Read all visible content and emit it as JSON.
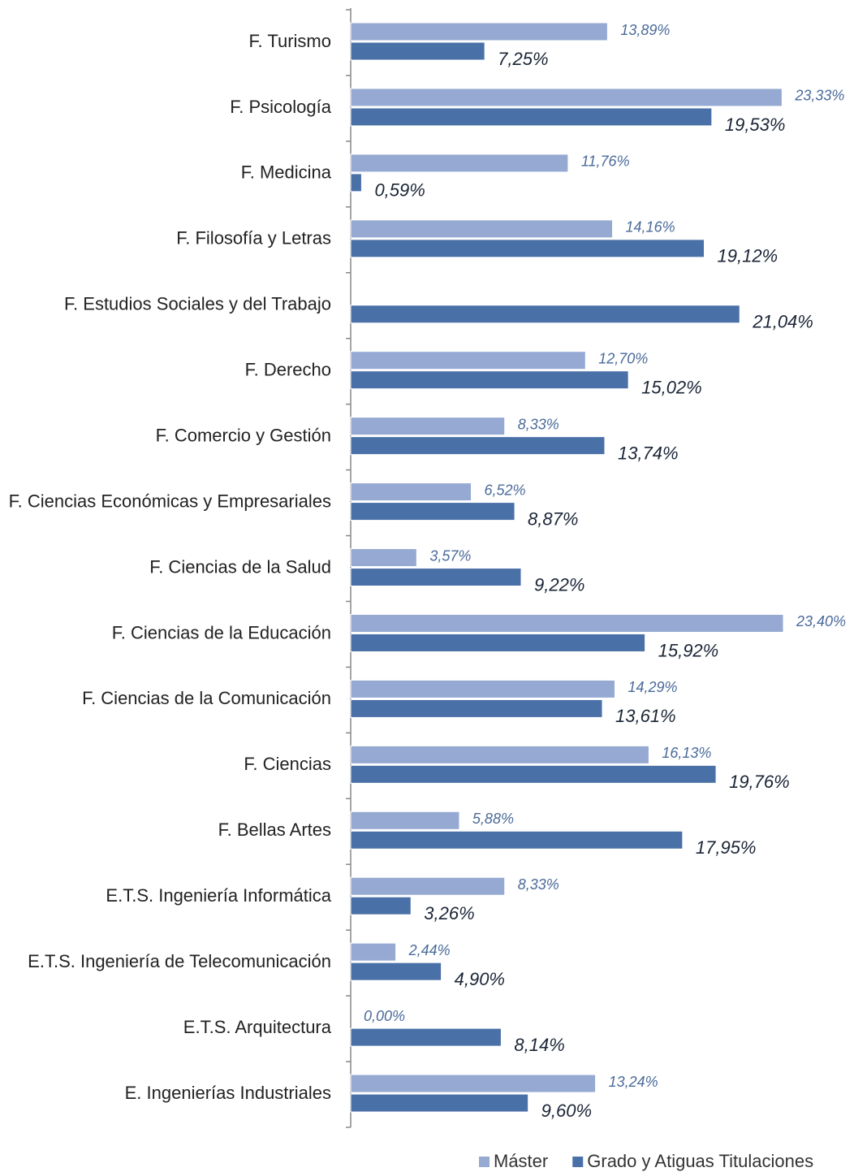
{
  "chart_data": {
    "type": "bar",
    "orientation": "horizontal",
    "categories": [
      "F. Turismo",
      "F. Psicología",
      "F. Medicina",
      "F. Filosofía y Letras",
      "F. Estudios Sociales y del Trabajo",
      "F. Derecho",
      "F. Comercio y Gestión",
      "F. Ciencias Económicas y Empresariales",
      "F. Ciencias de la Salud",
      "F. Ciencias de la Educación",
      "F. Ciencias de la Comunicación",
      "F. Ciencias",
      "F. Bellas Artes",
      "E.T.S. Ingeniería Informática",
      "E.T.S. Ingeniería de Telecomunicación",
      "E.T.S. Arquitectura",
      "E. Ingenierías Industriales"
    ],
    "series": [
      {
        "name": "Máster",
        "color": "#95a9d2",
        "values": [
          13.89,
          23.33,
          11.76,
          14.16,
          null,
          12.7,
          8.33,
          6.52,
          3.57,
          23.4,
          14.29,
          16.13,
          5.88,
          8.33,
          2.44,
          0.0,
          13.24
        ],
        "value_labels": [
          "13,89%",
          "23,33%",
          "11,76%",
          "14,16%",
          null,
          "12,70%",
          "8,33%",
          "6,52%",
          "3,57%",
          "23,40%",
          "14,29%",
          "16,13%",
          "5,88%",
          "8,33%",
          "2,44%",
          "0,00%",
          "13,24%"
        ]
      },
      {
        "name": "Grado y Atiguas Titulaciones",
        "color": "#4a70a8",
        "values": [
          7.25,
          19.53,
          0.59,
          19.12,
          21.04,
          15.02,
          13.74,
          8.87,
          9.22,
          15.92,
          13.61,
          19.76,
          17.95,
          3.26,
          4.9,
          8.14,
          9.6
        ],
        "value_labels": [
          "7,25%",
          "19,53%",
          "0,59%",
          "19,12%",
          "21,04%",
          "15,02%",
          "13,74%",
          "8,87%",
          "9,22%",
          "15,92%",
          "13,61%",
          "19,76%",
          "17,95%",
          "3,26%",
          "4,90%",
          "8,14%",
          "9,60%"
        ]
      }
    ],
    "legend": "bottom"
  }
}
